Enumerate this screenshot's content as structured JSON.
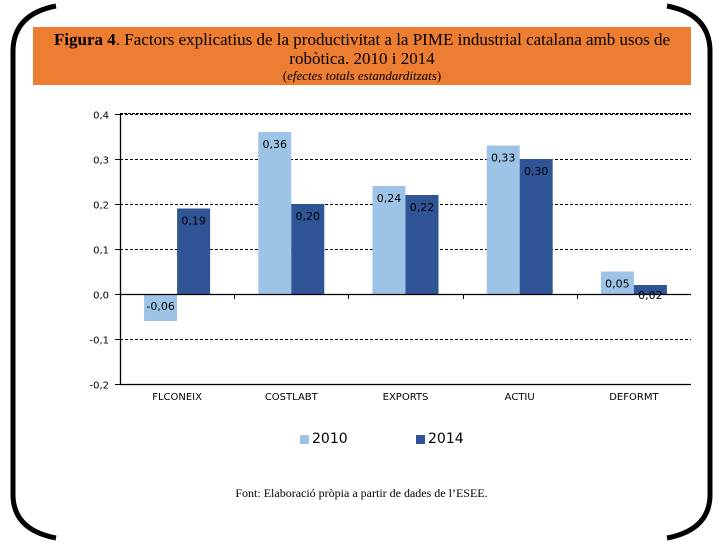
{
  "header": {
    "figure_label": "Figura 4",
    "title_rest": ". Factors explicatius de la productivitat a la PIME industrial catalana amb usos de robòtica. 2010 i 2014",
    "subtitle_open": "(",
    "subtitle": "efectes totals estandarditzats",
    "subtitle_close": ")"
  },
  "source": "Font: Elaboració pròpia a partir de dades de l’ESEE.",
  "colors": {
    "header_bg": "#ED7D31",
    "series_2010": "#9DC3E6",
    "series_2014": "#2F5597"
  },
  "chart_data": {
    "type": "bar",
    "title": "Factors explicatius de la productivitat a la PIME industrial catalana amb usos de robòtica. 2010 i 2014",
    "subtitle": "efectes totals estandarditzats",
    "xlabel": "",
    "ylabel": "",
    "categories": [
      "FLCONEIX",
      "COSTLABT",
      "EXPORTS",
      "ACTIU",
      "DEFORMT"
    ],
    "series": [
      {
        "name": "2010",
        "values": [
          -0.06,
          0.36,
          0.24,
          0.33,
          0.05
        ],
        "labels": [
          "-0,06",
          "0,36",
          "0,24",
          "0,33",
          "0,05"
        ]
      },
      {
        "name": "2014",
        "values": [
          0.19,
          0.2,
          0.22,
          0.3,
          0.02
        ],
        "labels": [
          "0,19",
          "0,20",
          "0,22",
          "0,30",
          "0,02"
        ]
      }
    ],
    "ylim": [
      -0.2,
      0.4
    ],
    "yticks": [
      0.4,
      0.3,
      0.2,
      0.1,
      0.0,
      -0.1,
      -0.2
    ],
    "ytick_labels": [
      "0,4",
      "0,3",
      "0,2",
      "0,1",
      "0,0",
      "-0,1",
      "-0,2"
    ],
    "grid": true,
    "grid_style": "dashed",
    "legend_position": "bottom"
  }
}
